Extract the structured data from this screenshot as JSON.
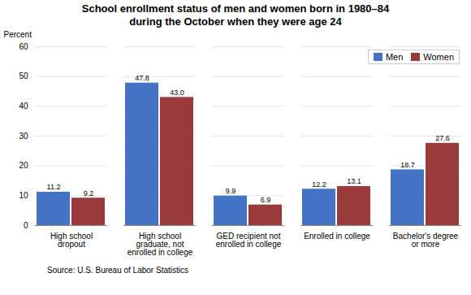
{
  "chart_data": {
    "type": "bar",
    "title": "School enrollment status of men and women born in 1980–84\nduring the October when they were age 24",
    "ylabel": "Percent",
    "caption": "Source: U.S. Bureau of Labor Statistics",
    "categories": [
      "High school\ndropout",
      "High school\ngraduate, not\nenrolled in college",
      "GED recipient not\nenrolled in college",
      "Enrolled in college",
      "Bachelor's degree\nor more"
    ],
    "series": [
      {
        "name": "Men",
        "color": "#4472C4",
        "values": [
          11.2,
          47.8,
          9.9,
          12.2,
          18.7
        ]
      },
      {
        "name": "Women",
        "color": "#9B3A3A",
        "values": [
          9.2,
          43.0,
          6.9,
          13.1,
          27.6
        ],
        "value_labels": [
          "9.2",
          "43.0",
          "6.9",
          "13.1",
          "27.6"
        ]
      }
    ],
    "ylim": [
      0,
      60
    ],
    "yticks": [
      0,
      10,
      20,
      30,
      40,
      50,
      60
    ],
    "grid": true,
    "legend": "upper right",
    "data_labels": true
  }
}
